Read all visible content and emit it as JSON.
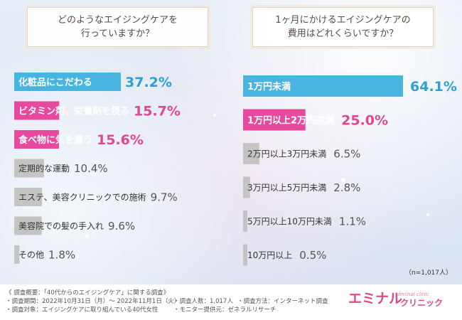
{
  "left_question": {
    "line1": "どのようなエイジングケアを",
    "line2": "行っていますか？"
  },
  "right_question": {
    "line1": "1ヶ月にかけるエイジングケアの",
    "line2": "費用はどれくらいですか？"
  },
  "colors": {
    "blue": "#48b4e0",
    "pink": "#e8489d",
    "gray": "#c4c4c4",
    "value_blue": "#2d9fd3",
    "value_pink": "#e0478f",
    "value_gray": "#555555"
  },
  "chart_data": [
    {
      "type": "bar",
      "orientation": "horizontal",
      "categories": [
        "化粧品にこだわる",
        "ビタミン剤、栄養剤を摂る",
        "食べ物に気を遣う",
        "定期的な運動",
        "エステ、美容クリニックでの施術",
        "美容院での髪の手入れ",
        "その他"
      ],
      "values": [
        37.2,
        15.7,
        15.6,
        10.4,
        9.7,
        9.6,
        1.8
      ],
      "value_labels": [
        "37.2%",
        "15.7%",
        "15.6%",
        "10.4%",
        "9.7%",
        "9.6%",
        "1.8%"
      ],
      "bar_colors": [
        "blue",
        "pink",
        "pink",
        "gray",
        "gray",
        "gray",
        "gray"
      ],
      "xlim": [
        0,
        37.2
      ]
    },
    {
      "type": "bar",
      "orientation": "horizontal",
      "categories": [
        "1万円未満",
        "1万円以上2万円未満",
        "2万円以上3万円未満",
        "3万円以上5万円未満",
        "5万円以上10万円未満",
        "10万円以上"
      ],
      "values": [
        64.1,
        25.0,
        6.5,
        2.8,
        1.1,
        0.5
      ],
      "value_labels": [
        "64.1%",
        "25.0%",
        "6.5%",
        "2.8%",
        "1.1%",
        "0.5%"
      ],
      "bar_colors": [
        "blue",
        "pink",
        "gray",
        "gray",
        "gray",
        "gray"
      ],
      "xlim": [
        0,
        64.1
      ]
    }
  ],
  "note": "（n=1,017人）",
  "footer": {
    "overview": "《 調査概要：「40代からのエイジングケア」に関する調査》",
    "period": "・調査期間：2022年10月31日（月）～ 2022年11月1日（火）",
    "target": "・調査対象：エイジングケアに取り組んでいる40代女性",
    "people": "・調査人数：1,017人",
    "provider": "・モニター提供元：ゼネラルリサーチ",
    "method": "・調査方法：インターネット調査"
  },
  "logo": {
    "main": "エミナル",
    "sub": "ēminal clinic",
    "clinic": "クリニック"
  }
}
